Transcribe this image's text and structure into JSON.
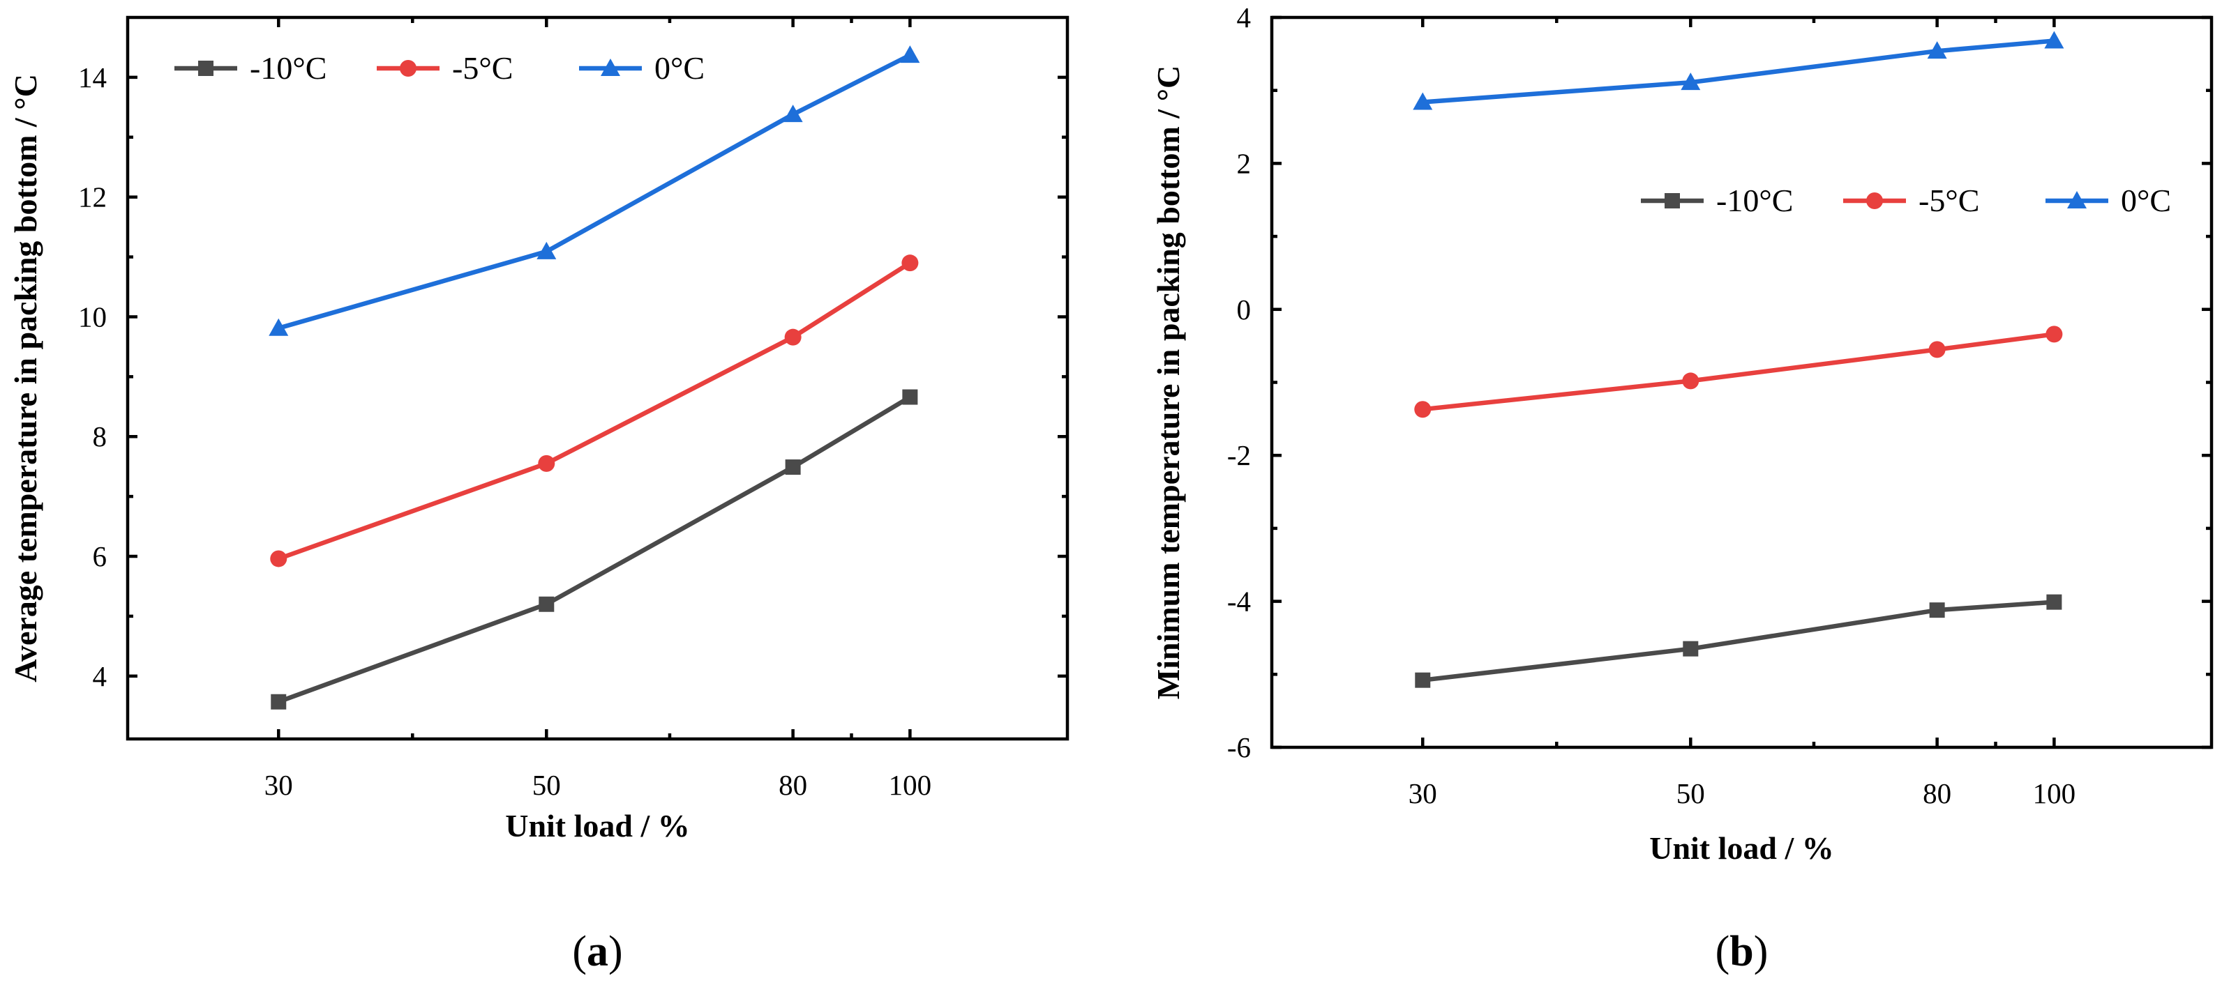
{
  "chart_data": [
    {
      "type": "line",
      "panel": "a",
      "panel_open": "(",
      "panel_close": ")",
      "xlabel": "Unit load / %",
      "ylabel": "Average temperature in packing bottom / °C",
      "x_scale": "log",
      "x": [
        30,
        50,
        80,
        100
      ],
      "xticks": [
        30,
        50,
        80,
        100
      ],
      "xlim": [
        22.5,
        135
      ],
      "yticks": [
        4,
        6,
        8,
        10,
        12,
        14
      ],
      "ylim": [
        2.95,
        15.0
      ],
      "legend_position": "top-left",
      "series": [
        {
          "name": "-10°C",
          "color": "#4a4a4a",
          "marker": "square",
          "values": [
            3.57,
            5.2,
            7.49,
            8.66
          ]
        },
        {
          "name": "-5°C",
          "color": "#e8403e",
          "marker": "circle",
          "values": [
            5.96,
            7.55,
            9.66,
            10.9
          ]
        },
        {
          "name": "0°C",
          "color": "#1e6fd9",
          "marker": "triangle",
          "values": [
            9.81,
            11.09,
            13.38,
            14.37
          ]
        }
      ]
    },
    {
      "type": "line",
      "panel": "b",
      "panel_open": "(",
      "panel_close": ")",
      "xlabel": "Unit load / %",
      "ylabel": "Minimum temperature in packing bottom / °C",
      "x_scale": "log",
      "x": [
        30,
        50,
        80,
        100
      ],
      "xticks": [
        30,
        50,
        80,
        100
      ],
      "xlim": [
        22.5,
        135
      ],
      "yticks": [
        -6,
        -4,
        -2,
        0,
        2,
        4
      ],
      "ylim": [
        -6,
        4
      ],
      "legend_position": "upper-right",
      "series": [
        {
          "name": "-10°C",
          "color": "#4a4a4a",
          "marker": "square",
          "values": [
            -5.08,
            -4.65,
            -4.12,
            -4.01
          ]
        },
        {
          "name": "-5°C",
          "color": "#e8403e",
          "marker": "circle",
          "values": [
            -1.37,
            -0.98,
            -0.55,
            -0.34
          ]
        },
        {
          "name": "0°C",
          "color": "#1e6fd9",
          "marker": "triangle",
          "values": [
            2.84,
            3.11,
            3.54,
            3.68
          ]
        }
      ]
    }
  ]
}
